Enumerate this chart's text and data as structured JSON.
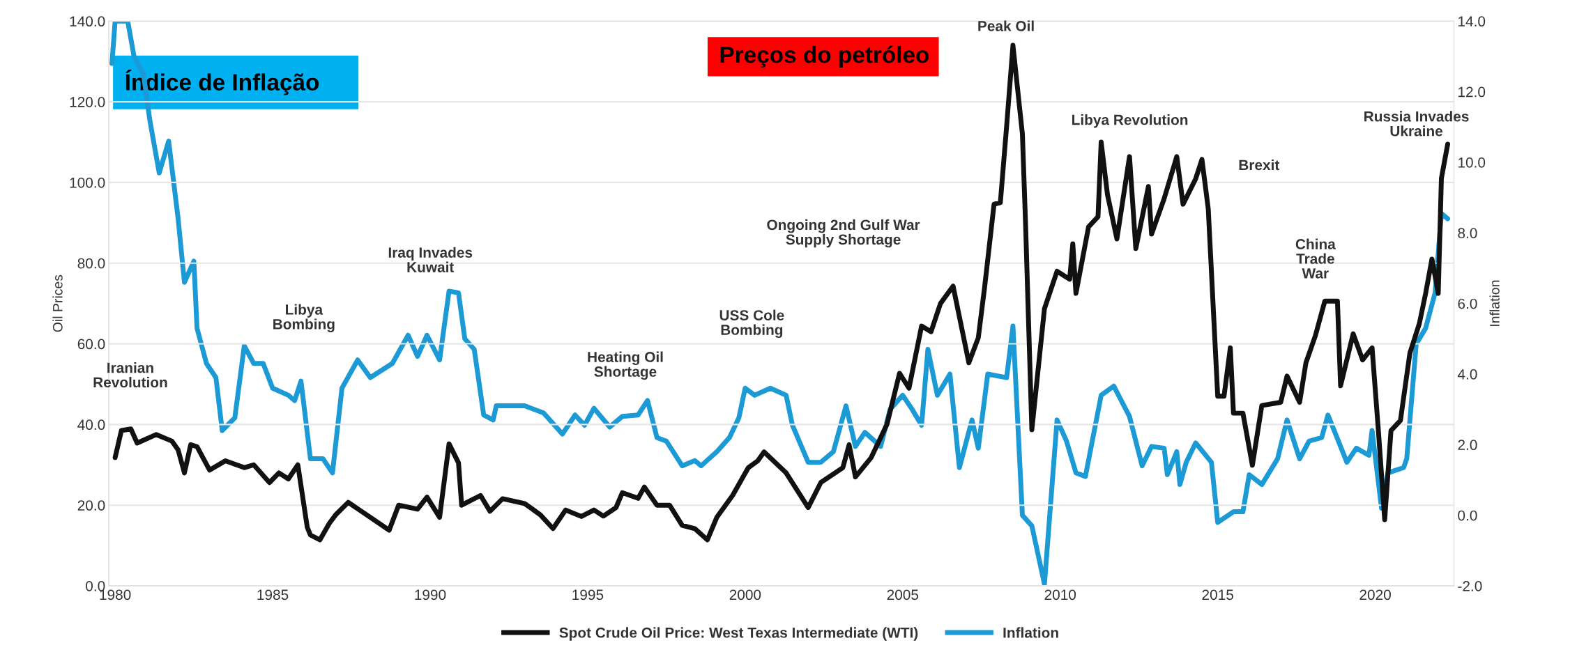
{
  "chart_data": {
    "type": "line",
    "ylabel": "Oil Prices",
    "y2label": "Inflation",
    "xlim": [
      1979.8,
      2022.5
    ],
    "xticks": [
      1980,
      1985,
      1990,
      1995,
      2000,
      2005,
      2010,
      2015,
      2020
    ],
    "ylim": [
      0,
      140
    ],
    "yticks": [
      {
        "value": 0,
        "label": "0.0"
      },
      {
        "value": 20,
        "label": "20.0"
      },
      {
        "value": 40,
        "label": "40.0"
      },
      {
        "value": 60,
        "label": "60.0"
      },
      {
        "value": 80,
        "label": "80.0"
      },
      {
        "value": 100,
        "label": "100.0"
      },
      {
        "value": 120,
        "label": "120.0"
      },
      {
        "value": 140,
        "label": "140.0"
      }
    ],
    "y2lim": [
      -2,
      14
    ],
    "y2ticks": [
      {
        "value": -2,
        "label": "-2.0"
      },
      {
        "value": 0,
        "label": "0.0"
      },
      {
        "value": 2,
        "label": "2.0"
      },
      {
        "value": 4,
        "label": "4.0"
      },
      {
        "value": 6,
        "label": "6.0"
      },
      {
        "value": 8,
        "label": "8.0"
      },
      {
        "value": 10,
        "label": "10.0"
      },
      {
        "value": 12,
        "label": "12.0"
      },
      {
        "value": 14,
        "label": "14.0"
      }
    ],
    "grid": "y",
    "legend": "bottom",
    "line_style": "solid",
    "marker": "none",
    "series": [
      {
        "name": "Spot Crude Oil Price: West Texas Intermediate (WTI)",
        "color": "#111111",
        "x": [
          1980.0,
          1980.2,
          1980.5,
          1980.7,
          1981.3,
          1981.8,
          1982.0,
          1982.2,
          1982.4,
          1982.6,
          1983.0,
          1983.5,
          1984.1,
          1984.4,
          1984.9,
          1985.2,
          1985.5,
          1985.8,
          1986.1,
          1986.2,
          1986.5,
          1986.8,
          1987.0,
          1987.4,
          1988.1,
          1988.7,
          1989.0,
          1989.6,
          1989.9,
          1990.3,
          1990.6,
          1990.9,
          1991.0,
          1991.6,
          1991.9,
          1992.3,
          1993.0,
          1993.5,
          1993.9,
          1994.3,
          1994.8,
          1995.2,
          1995.5,
          1995.9,
          1996.1,
          1996.6,
          1996.8,
          1997.2,
          1997.6,
          1998.0,
          1998.4,
          1998.8,
          1999.1,
          1999.6,
          2000.1,
          2000.4,
          2000.6,
          2001.3,
          2002.0,
          2002.4,
          2003.1,
          2003.3,
          2003.5,
          2004.0,
          2004.5,
          2004.9,
          2005.2,
          2005.6,
          2005.9,
          2006.2,
          2006.6,
          2007.1,
          2007.4,
          2007.6,
          2007.9,
          2008.1,
          2008.3,
          2008.5,
          2008.8,
          2008.9,
          2009.1,
          2009.5,
          2009.9,
          2010.3,
          2010.4,
          2010.5,
          2010.9,
          2011.2,
          2011.3,
          2011.5,
          2011.8,
          2012.2,
          2012.4,
          2012.8,
          2012.9,
          2013.3,
          2013.7,
          2013.9,
          2014.3,
          2014.5,
          2014.7,
          2015.0,
          2015.2,
          2015.4,
          2015.5,
          2015.8,
          2016.1,
          2016.4,
          2017.0,
          2017.2,
          2017.6,
          2017.8,
          2018.1,
          2018.4,
          2018.8,
          2018.9,
          2019.3,
          2019.6,
          2019.9,
          2020.1,
          2020.3,
          2020.5,
          2020.8,
          2021.1,
          2021.4,
          2021.6,
          2021.8,
          2022.0,
          2022.1,
          2022.3
        ],
        "values": [
          31.8,
          38.5,
          38.9,
          35.4,
          37.5,
          35.9,
          33.7,
          28,
          35,
          34.5,
          28.7,
          31,
          29.3,
          30,
          25.6,
          28,
          26.5,
          30,
          14.5,
          12.6,
          11.4,
          15.5,
          17.6,
          20.7,
          17,
          13.8,
          20,
          19,
          22,
          17,
          35.2,
          30.5,
          20,
          22.4,
          18.5,
          21.6,
          20.4,
          17.6,
          14.2,
          18.8,
          17.2,
          18.8,
          17.3,
          19.4,
          23.1,
          21.7,
          24.5,
          20,
          20,
          15,
          14.2,
          11.4,
          17,
          22.4,
          29.3,
          31,
          33.2,
          28,
          19.4,
          25.6,
          29.3,
          35,
          27,
          31.8,
          40,
          52.7,
          49,
          64.4,
          63,
          70,
          74.3,
          55.3,
          61.5,
          74,
          94.6,
          95,
          114,
          134,
          112,
          89.8,
          38.7,
          68.7,
          78,
          76,
          84.8,
          72.5,
          89,
          91.5,
          110,
          97,
          86,
          106.4,
          83.6,
          99,
          87.2,
          96,
          106.4,
          94.6,
          100.9,
          105.7,
          93.4,
          47,
          47,
          59,
          42.8,
          42.8,
          29.9,
          44.7,
          45.5,
          52,
          45.5,
          55.3,
          62,
          70.6,
          70.6,
          49.6,
          62.5,
          56,
          59,
          38.5,
          16.4,
          38.5,
          41,
          57.7,
          65,
          72.5,
          81,
          72.5,
          101,
          109.5
        ]
      },
      {
        "name": "Inflation",
        "color": "#1b9ad6",
        "axis": "y2",
        "x": [
          1979.9,
          1980.0,
          1980.4,
          1980.6,
          1980.9,
          1981.1,
          1981.4,
          1981.7,
          1982.0,
          1982.2,
          1982.5,
          1982.6,
          1982.9,
          1983.2,
          1983.4,
          1983.8,
          1984.1,
          1984.4,
          1984.7,
          1985.0,
          1985.5,
          1985.7,
          1985.9,
          1986.2,
          1986.6,
          1986.9,
          1987.2,
          1987.7,
          1988.1,
          1988.8,
          1989.3,
          1989.6,
          1989.9,
          1990.3,
          1990.6,
          1990.9,
          1991.1,
          1991.4,
          1991.7,
          1992.0,
          1992.1,
          1993.0,
          1993.6,
          1994.2,
          1994.6,
          1994.9,
          1995.2,
          1995.7,
          1996.1,
          1996.6,
          1996.9,
          1997.2,
          1997.5,
          1998.0,
          1998.4,
          1998.6,
          1999.1,
          1999.5,
          1999.8,
          2000.0,
          2000.3,
          2000.8,
          2001.3,
          2001.5,
          2002.0,
          2002.4,
          2002.8,
          2003.2,
          2003.5,
          2003.8,
          2004.3,
          2004.6,
          2005.0,
          2005.3,
          2005.6,
          2005.8,
          2006.1,
          2006.5,
          2006.8,
          2007.2,
          2007.4,
          2007.7,
          2008.3,
          2008.5,
          2008.8,
          2009.1,
          2009.5,
          2009.9,
          2010.2,
          2010.5,
          2010.8,
          2011.3,
          2011.7,
          2012.2,
          2012.6,
          2012.9,
          2013.3,
          2013.4,
          2013.7,
          2013.8,
          2014.0,
          2014.3,
          2014.8,
          2015.0,
          2015.5,
          2015.8,
          2016.0,
          2016.4,
          2016.9,
          2017.2,
          2017.6,
          2017.9,
          2018.3,
          2018.5,
          2019.1,
          2019.4,
          2019.8,
          2019.9,
          2020.2,
          2020.4,
          2020.9,
          2021.0,
          2021.3,
          2021.6,
          2021.9,
          2022.1,
          2022.3
        ],
        "values": [
          12.8,
          14.0,
          14.0,
          13.0,
          12.5,
          11.2,
          9.7,
          10.6,
          8.4,
          6.6,
          7.2,
          5.3,
          4.3,
          3.9,
          2.4,
          2.76,
          4.8,
          4.3,
          4.3,
          3.6,
          3.4,
          3.25,
          3.8,
          1.6,
          1.6,
          1.2,
          3.6,
          4.4,
          3.9,
          4.3,
          5.1,
          4.5,
          5.1,
          4.4,
          6.35,
          6.3,
          5.0,
          4.7,
          2.84,
          2.7,
          3.1,
          3.1,
          2.9,
          2.3,
          2.84,
          2.55,
          3.03,
          2.5,
          2.8,
          2.84,
          3.25,
          2.2,
          2.1,
          1.4,
          1.55,
          1.4,
          1.8,
          2.2,
          2.76,
          3.6,
          3.4,
          3.6,
          3.4,
          2.55,
          1.5,
          1.5,
          1.8,
          3.1,
          1.95,
          2.35,
          1.95,
          3.0,
          3.4,
          3.0,
          2.55,
          4.7,
          3.4,
          4.0,
          1.35,
          2.7,
          1.9,
          4.0,
          3.9,
          5.36,
          0.0,
          -0.3,
          -1.95,
          2.7,
          2.1,
          1.2,
          1.1,
          3.4,
          3.66,
          2.8,
          1.4,
          1.95,
          1.9,
          1.15,
          1.8,
          0.87,
          1.5,
          2.05,
          1.5,
          -0.2,
          0.1,
          0.1,
          1.15,
          0.87,
          1.6,
          2.7,
          1.6,
          2.1,
          2.2,
          2.84,
          1.5,
          1.9,
          1.7,
          2.4,
          0.2,
          1.2,
          1.35,
          1.6,
          4.85,
          5.3,
          6.3,
          8.55,
          8.4
        ]
      }
    ],
    "annotations": [
      "Iranian\nRevolution",
      "Libya\nBombing",
      "Iraq Invades\nKuwait",
      "Heating Oil\nShortage",
      "USS Cole\nBombing",
      "Ongoing 2nd Gulf War\nSupply Shortage",
      "Peak Oil",
      "Libya Revolution",
      "Brexit",
      "China\nTrade\nWar",
      "Russia Invades\nUkraine",
      "Índice de Inflação",
      "Preços do petróleo"
    ]
  }
}
